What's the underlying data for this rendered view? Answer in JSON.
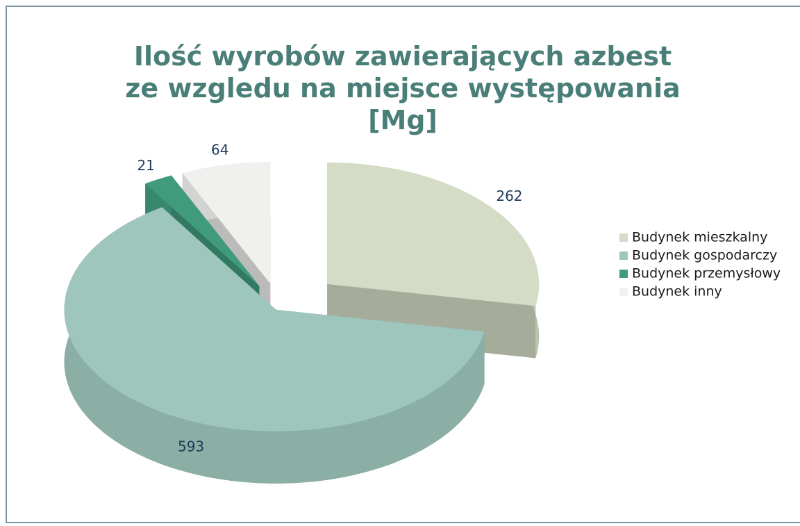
{
  "chart_data": {
    "type": "pie3d",
    "title": "Ilość wyrobów zawierających azbest ze wzgledu na miejsce występowania [Mg]",
    "categories": [
      "Budynek mieszkalny",
      "Budynek gospodarczy",
      "Budynek przemysłowy",
      "Budynek inny"
    ],
    "values": [
      262,
      593,
      21,
      64
    ],
    "colors": [
      "#d4dcc6",
      "#9ec6bc",
      "#3f9b7c",
      "#f0f0ee"
    ],
    "legend": "right"
  }
}
